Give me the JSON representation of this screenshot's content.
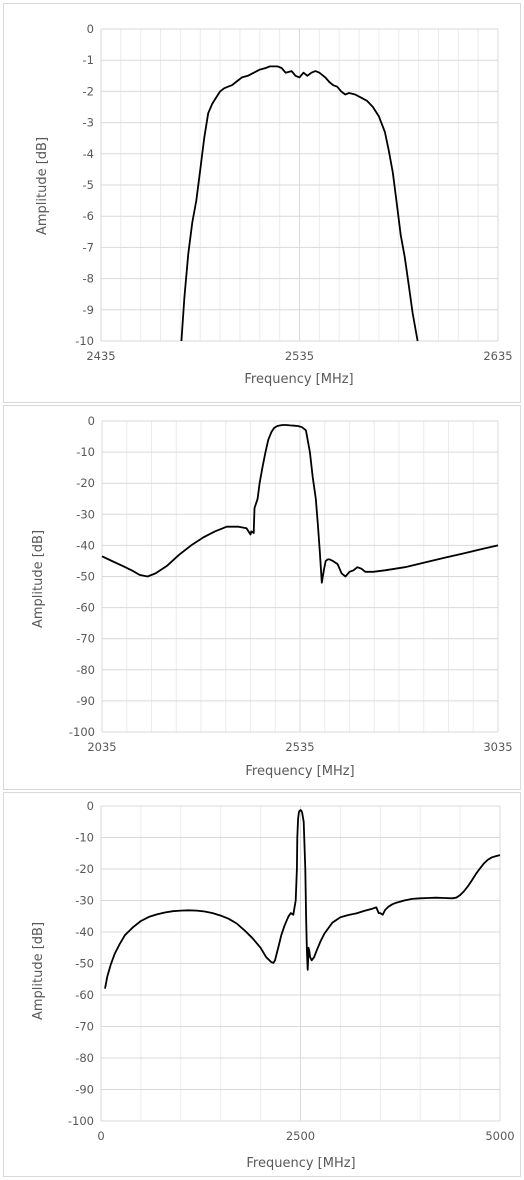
{
  "colors": {
    "line": "#000000",
    "grid_major": "#d9d9d9",
    "grid_minor": "#ececec",
    "text": "#595959",
    "border": "#d9d9d9"
  },
  "chart_data": [
    {
      "type": "line",
      "title": "",
      "xlabel": "Frequency [MHz]",
      "ylabel": "Amplitude [dB]",
      "xlim": [
        2435,
        2635
      ],
      "ylim": [
        -10,
        0
      ],
      "x_ticks": [
        2435,
        2535,
        2635
      ],
      "x_tick_labels": [
        "2435",
        "2535",
        "2635"
      ],
      "x_minor_step": 10,
      "y_ticks": [
        0,
        -1,
        -2,
        -3,
        -4,
        -5,
        -6,
        -7,
        -8,
        -9,
        -10
      ],
      "y_tick_labels": [
        "0",
        "-1",
        "-2",
        "-3",
        "-4",
        "-5",
        "-6",
        "-7",
        "-8",
        "-9",
        "-10"
      ],
      "grid": true,
      "series": [
        {
          "x": [
            2475.5,
            2477,
            2479,
            2481,
            2483,
            2485,
            2487,
            2489,
            2491,
            2493,
            2495,
            2497,
            2499,
            2501,
            2503,
            2506,
            2509,
            2512,
            2515,
            2518,
            2520,
            2522,
            2524,
            2526,
            2528,
            2531,
            2533,
            2535,
            2537,
            2539,
            2541,
            2543,
            2545,
            2548,
            2550,
            2552,
            2554,
            2556,
            2558,
            2560,
            2563,
            2566,
            2569,
            2572,
            2575,
            2578,
            2580,
            2582,
            2584,
            2586,
            2588,
            2590,
            2592,
            2594.5
          ],
          "y": [
            -10,
            -8.6,
            -7.2,
            -6.2,
            -5.5,
            -4.5,
            -3.5,
            -2.7,
            -2.4,
            -2.2,
            -2.0,
            -1.9,
            -1.85,
            -1.8,
            -1.7,
            -1.55,
            -1.5,
            -1.4,
            -1.3,
            -1.25,
            -1.2,
            -1.2,
            -1.2,
            -1.25,
            -1.4,
            -1.35,
            -1.5,
            -1.55,
            -1.4,
            -1.5,
            -1.4,
            -1.35,
            -1.4,
            -1.55,
            -1.7,
            -1.8,
            -1.85,
            -2.0,
            -2.1,
            -2.05,
            -2.1,
            -2.2,
            -2.3,
            -2.5,
            -2.8,
            -3.3,
            -3.9,
            -4.6,
            -5.6,
            -6.6,
            -7.3,
            -8.2,
            -9.1,
            -10
          ]
        }
      ]
    },
    {
      "type": "line",
      "title": "",
      "xlabel": "Frequency [MHz]",
      "ylabel": "Amplitude [dB]",
      "xlim": [
        2035,
        3035
      ],
      "ylim": [
        -100,
        0
      ],
      "x_ticks": [
        2035,
        2535,
        3035
      ],
      "x_tick_labels": [
        "2035",
        "2535",
        "3035"
      ],
      "x_minor_step": 62.5,
      "y_ticks": [
        0,
        -10,
        -20,
        -30,
        -40,
        -50,
        -60,
        -70,
        -80,
        -90,
        -100
      ],
      "y_tick_labels": [
        "0",
        "-10",
        "-20",
        "-30",
        "-40",
        "-50",
        "-60",
        "-70",
        "-80",
        "-90",
        "-100"
      ],
      "grid": true,
      "series": [
        {
          "x": [
            2035,
            2060,
            2085,
            2110,
            2130,
            2150,
            2170,
            2200,
            2230,
            2260,
            2290,
            2320,
            2350,
            2380,
            2400,
            2410,
            2412,
            2418,
            2420,
            2428,
            2433,
            2440,
            2448,
            2455,
            2463,
            2470,
            2478,
            2485,
            2492,
            2500,
            2510,
            2520,
            2530,
            2540,
            2550,
            2560,
            2567,
            2575,
            2580,
            2585,
            2590,
            2595,
            2600,
            2605,
            2610,
            2618,
            2630,
            2640,
            2650,
            2660,
            2670,
            2680,
            2690,
            2700,
            2720,
            2750,
            2800,
            2850,
            2900,
            2950,
            3000,
            3035
          ],
          "y": [
            -43.5,
            -45,
            -46.5,
            -48,
            -49.5,
            -50,
            -49,
            -46.5,
            -43,
            -40,
            -37.5,
            -35.5,
            -34,
            -34,
            -34.5,
            -36.5,
            -35.5,
            -36,
            -28,
            -25,
            -20,
            -15,
            -10,
            -6,
            -3.5,
            -2.2,
            -1.6,
            -1.4,
            -1.3,
            -1.3,
            -1.4,
            -1.5,
            -1.6,
            -2,
            -3,
            -10,
            -18,
            -25,
            -33,
            -42,
            -52,
            -48,
            -45,
            -44.5,
            -44.5,
            -45,
            -46,
            -49,
            -50,
            -48.5,
            -48,
            -47,
            -47.5,
            -48.5,
            -48.5,
            -48,
            -47,
            -45.5,
            -44,
            -42.5,
            -41,
            -40
          ]
        }
      ]
    },
    {
      "type": "line",
      "title": "",
      "xlabel": "Frequency [MHz]",
      "ylabel": "Amplitude [dB]",
      "xlim": [
        0,
        5000
      ],
      "ylim": [
        -100,
        0
      ],
      "x_ticks": [
        0,
        2500,
        5000
      ],
      "x_tick_labels": [
        "0",
        "2500",
        "5000"
      ],
      "x_minor_step": 500,
      "y_ticks": [
        0,
        -10,
        -20,
        -30,
        -40,
        -50,
        -60,
        -70,
        -80,
        -90,
        -100
      ],
      "y_tick_labels": [
        "0",
        "-10",
        "-20",
        "-30",
        "-40",
        "-50",
        "-60",
        "-70",
        "-80",
        "-90",
        "-100"
      ],
      "grid": true,
      "series": [
        {
          "x": [
            50,
            80,
            120,
            170,
            230,
            300,
            400,
            500,
            600,
            700,
            800,
            900,
            1000,
            1100,
            1200,
            1300,
            1400,
            1500,
            1600,
            1700,
            1800,
            1900,
            2000,
            2070,
            2130,
            2160,
            2180,
            2200,
            2230,
            2260,
            2300,
            2350,
            2380,
            2410,
            2440,
            2455,
            2460,
            2470,
            2480,
            2490,
            2500,
            2510,
            2520,
            2540,
            2560,
            2570,
            2580,
            2590,
            2595,
            2600,
            2610,
            2620,
            2640,
            2670,
            2700,
            2750,
            2800,
            2900,
            3000,
            3100,
            3200,
            3300,
            3400,
            3450,
            3480,
            3500,
            3530,
            3560,
            3600,
            3650,
            3700,
            3800,
            3900,
            4000,
            4100,
            4200,
            4300,
            4400,
            4450,
            4500,
            4550,
            4600,
            4650,
            4700,
            4750,
            4800,
            4850,
            4900,
            4950,
            5000
          ],
          "y": [
            -58,
            -54,
            -50.5,
            -47,
            -44,
            -41,
            -38.5,
            -36.5,
            -35.2,
            -34.4,
            -33.8,
            -33.4,
            -33.2,
            -33.1,
            -33.2,
            -33.5,
            -34,
            -34.8,
            -35.8,
            -37.3,
            -39.5,
            -42,
            -45,
            -48,
            -49.5,
            -49.8,
            -49,
            -47,
            -44,
            -41,
            -38,
            -35,
            -34,
            -34.5,
            -30,
            -20,
            -10,
            -4,
            -2,
            -1.5,
            -1.3,
            -1.5,
            -2,
            -5,
            -20,
            -35,
            -46,
            -52,
            -49,
            -45,
            -46,
            -48,
            -49,
            -48,
            -46,
            -43,
            -40.5,
            -37,
            -35.3,
            -34.6,
            -34.1,
            -33.3,
            -32.6,
            -32.2,
            -34,
            -34,
            -34.5,
            -33,
            -32,
            -31.2,
            -30.7,
            -30,
            -29.5,
            -29.3,
            -29.2,
            -29.1,
            -29.2,
            -29.3,
            -29.1,
            -28.3,
            -27,
            -25.4,
            -23.5,
            -21.5,
            -19.8,
            -18.2,
            -17,
            -16.3,
            -15.9,
            -15.6
          ]
        }
      ]
    }
  ]
}
